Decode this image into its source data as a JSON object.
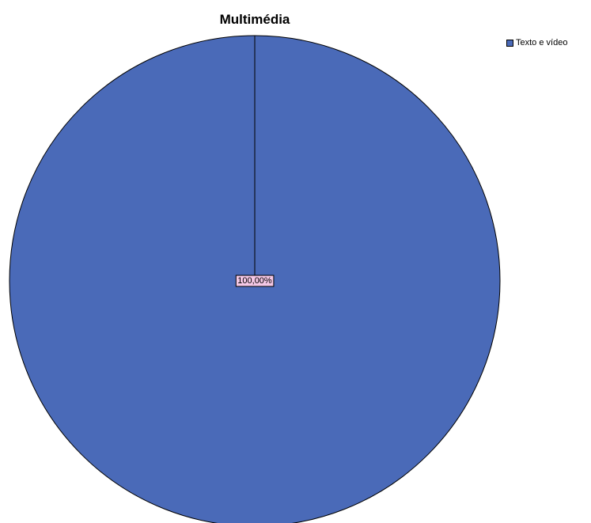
{
  "chart_data": {
    "type": "pie",
    "title": "Multimédia",
    "categories": [
      "Texto e vídeo"
    ],
    "values": [
      100
    ],
    "labels": [
      "100,00%"
    ],
    "colors": [
      "#4a6ab8"
    ],
    "label_box_color": "#f5c8e6",
    "legend_position": "top-right"
  }
}
